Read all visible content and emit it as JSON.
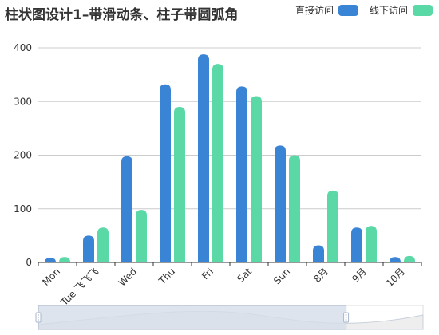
{
  "chart_data": {
    "type": "bar",
    "title": "柱状图设计1–带滑动条、柱子带圆弧角",
    "categories": [
      "Mon",
      "Tue 飞飞飞",
      "Wed",
      "Thu",
      "Fri",
      "Sat",
      "Sun",
      "8月",
      "9月",
      "10月"
    ],
    "series": [
      {
        "name": "直接访问",
        "color": "#3a84d6",
        "values": [
          8,
          50,
          198,
          332,
          388,
          328,
          218,
          32,
          65,
          10
        ]
      },
      {
        "name": "线下访问",
        "color": "#5ad8a6",
        "values": [
          10,
          65,
          98,
          290,
          370,
          310,
          200,
          134,
          68,
          12
        ]
      }
    ],
    "yticks": [
      0,
      100,
      200,
      300,
      400
    ],
    "ylim": [
      0,
      400
    ],
    "grid": true,
    "legend_position": "top-right",
    "datazoom": {
      "start_percent": 0,
      "end_percent": 80
    }
  },
  "colors": {
    "axis": "#333333",
    "grid": "#cccccc",
    "slider_fill": "#d6dde9",
    "slider_border": "#a9b7cc",
    "slider_line": "#c8cfdb"
  }
}
